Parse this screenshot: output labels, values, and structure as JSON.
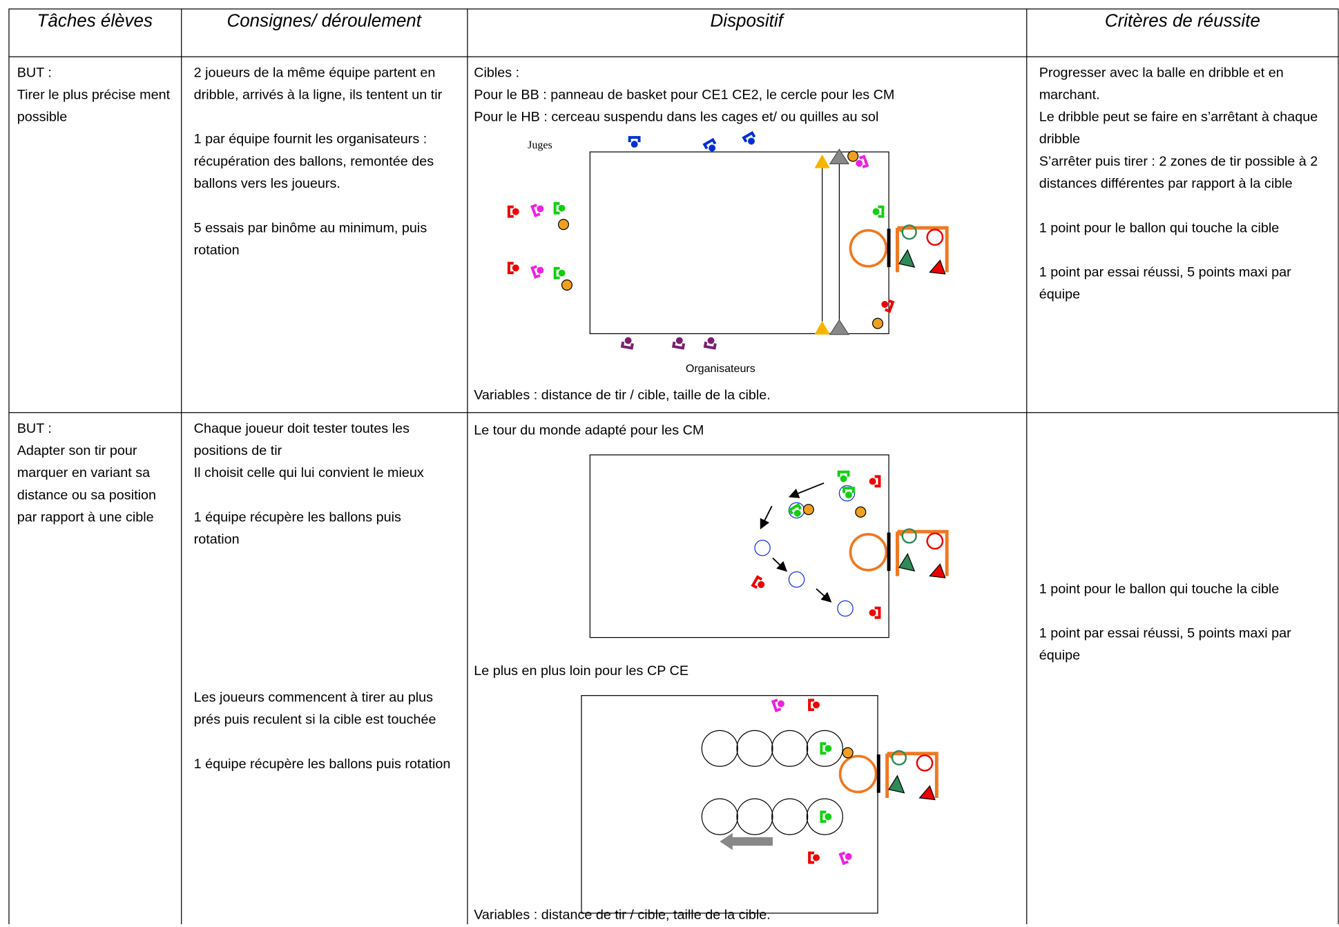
{
  "table": {
    "header": [
      "Tâches élèves",
      "Consignes/ déroulement",
      "Dispositif",
      "Critères de réussite"
    ],
    "rows": [
      {
        "tache": [
          "BUT :",
          "Tirer le plus précise ment possible"
        ],
        "consignes": [
          [
            [
              "2 joueurs de la même équipe partent en dribble, arrivés à la ligne, ils tentent un tir"
            ],
            [
              "1 par équipe fournit les organisateurs : récupération des ballons, remontée des ballons vers les joueurs."
            ],
            [
              "5 essais par binôme au minimum, puis rotation"
            ]
          ]
        ],
        "dispositif": {
          "intro": [
            "Cibles :",
            "Pour le BB : panneau de basket pour CE1 CE2, le cercle pour les CM",
            "Pour le HB : cerceau suspendu dans les cages et/ ou quilles au sol"
          ],
          "diagram_labels": [
            "Juges",
            "Organisateurs"
          ],
          "footer": "Variables : distance de tir / cible, taille de la cible."
        },
        "criteres": [
          [
            [
              "Progresser avec la balle en dribble et en marchant.",
              "Le dribble peut se faire en s’arrêtant à chaque dribble",
              "S’arrêter puis tirer : 2 zones de tir possible à 2 distances différentes par rapport à la cible"
            ],
            [
              "1 point pour le ballon qui touche la cible"
            ],
            [
              "1 point par essai réussi, 5 points maxi par équipe"
            ]
          ]
        ]
      },
      {
        "tache": [
          "BUT :",
          "Adapter son tir pour marquer en variant sa distance ou sa position par rapport à une cible"
        ],
        "consignes": [
          [
            [
              "Chaque joueur doit tester toutes les positions de tir",
              "Il choisit celle qui lui convient le mieux"
            ],
            [
              "1 équipe récupère les ballons puis rotation"
            ]
          ],
          [
            [
              "Les joueurs commencent à tirer au plus prés puis reculent si la cible est touchée"
            ],
            [
              "1 équipe récupère les ballons puis rotation"
            ]
          ]
        ],
        "dispositif": {
          "sections": [
            "Le tour du monde adapté pour les CM",
            "Le plus en plus loin pour les CP CE"
          ],
          "footer": "Variables : distance de tir / cible, taille de la cible."
        },
        "criteres": [
          [
            [
              "1 point pour le ballon qui touche la cible"
            ],
            [
              "1 point par essai réussi, 5 points maxi par équipe"
            ]
          ]
        ]
      }
    ]
  }
}
